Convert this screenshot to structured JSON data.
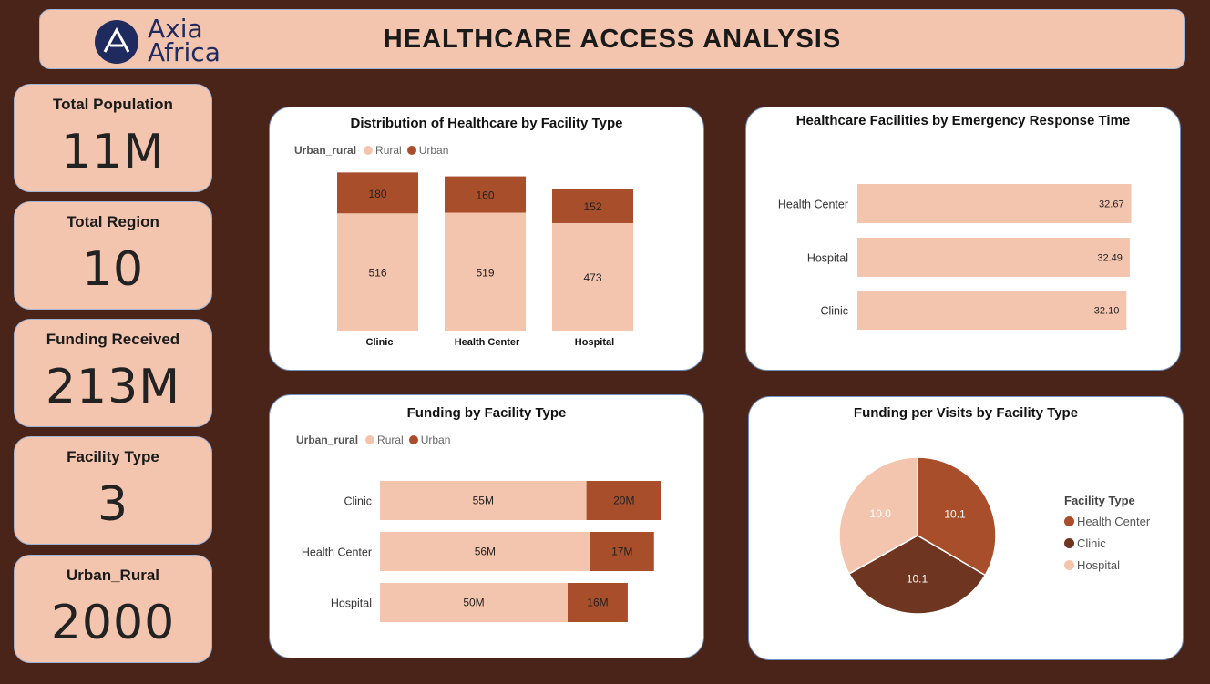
{
  "header": {
    "logo_line1": "Axia",
    "logo_line2": "Africa",
    "title": "HEALTHCARE ACCESS ANALYSIS"
  },
  "kpis": [
    {
      "label": "Total Population",
      "value": "11M"
    },
    {
      "label": "Total Region",
      "value": "10"
    },
    {
      "label": "Funding Received",
      "value": "213M"
    },
    {
      "label": "Facility Type",
      "value": "3"
    },
    {
      "label": "Urban_Rural",
      "value": "2000"
    }
  ],
  "colors": {
    "rural": "#f4c5ae",
    "urban": "#a84e2a",
    "clinic": "#6e3520"
  },
  "chart_data": [
    {
      "type": "bar",
      "stacked": true,
      "orientation": "vertical",
      "title": "Distribution of Healthcare by Facility Type",
      "legend_title": "Urban_rural",
      "categories": [
        "Clinic",
        "Health Center",
        "Hospital"
      ],
      "series": [
        {
          "name": "Rural",
          "values": [
            516,
            519,
            473
          ]
        },
        {
          "name": "Urban",
          "values": [
            180,
            160,
            152
          ]
        }
      ]
    },
    {
      "type": "bar",
      "orientation": "horizontal",
      "title": "Healthcare Facilities by Emergency Response Time",
      "categories": [
        "Health Center",
        "Hospital",
        "Clinic"
      ],
      "values": [
        32.67,
        32.49,
        32.1
      ],
      "value_labels": [
        "32.67",
        "32.49",
        "32.10"
      ]
    },
    {
      "type": "bar",
      "stacked": true,
      "orientation": "horizontal",
      "title": "Funding by Facility Type",
      "legend_title": "Urban_rural",
      "categories": [
        "Clinic",
        "Health Center",
        "Hospital"
      ],
      "series": [
        {
          "name": "Rural",
          "values": [
            55,
            56,
            50
          ],
          "labels": [
            "55M",
            "56M",
            "50M"
          ]
        },
        {
          "name": "Urban",
          "values": [
            20,
            17,
            16
          ],
          "labels": [
            "20M",
            "17M",
            "16M"
          ]
        }
      ]
    },
    {
      "type": "pie",
      "title": "Funding per Visits by Facility Type",
      "legend_title": "Facility Type",
      "slices": [
        {
          "name": "Health Center",
          "value": 10.1,
          "label": "10.1",
          "color": "#a84e2a"
        },
        {
          "name": "Clinic",
          "value": 10.1,
          "label": "10.1",
          "color": "#6e3520"
        },
        {
          "name": "Hospital",
          "value": 10.0,
          "label": "10.0",
          "color": "#f4c5ae"
        }
      ]
    }
  ]
}
